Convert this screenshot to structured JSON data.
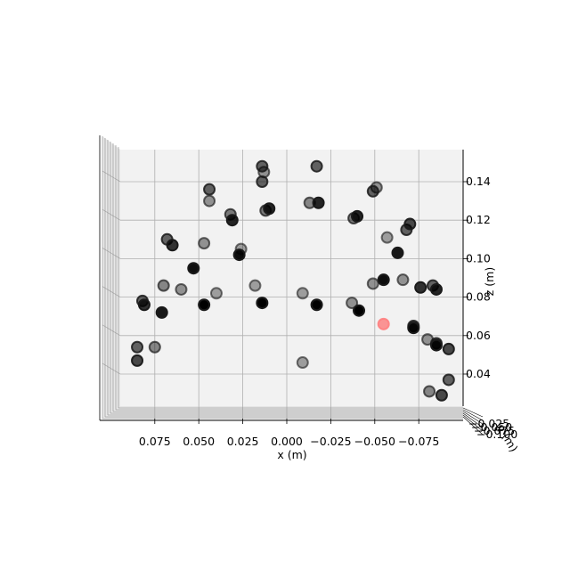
{
  "chart_data": {
    "type": "scatter",
    "projection": "3d",
    "view": "front (x-z plane), x axis inverted",
    "xlabel": "x (m)",
    "ylabel": "y (m)",
    "zlabel": "z (m)",
    "grid": true,
    "x_ticks": [
      "0.075",
      "0.050",
      "0.025",
      "0.000",
      "−0.025",
      "−0.050",
      "−0.075"
    ],
    "z_ticks": [
      "0.04",
      "0.06",
      "0.08",
      "0.10",
      "0.12",
      "0.14"
    ],
    "y_tick_residue": "−0.100",
    "xlim": [
      0.095,
      -0.1
    ],
    "zlim": [
      0.025,
      0.155
    ],
    "marker_color": "#000000",
    "highlight_color": "#ff5555",
    "points": [
      {
        "x": 0.014,
        "z": 0.148,
        "depth": 0.6
      },
      {
        "x": 0.013,
        "z": 0.145,
        "depth": 0.4
      },
      {
        "x": 0.044,
        "z": 0.136,
        "depth": 0.6
      },
      {
        "x": 0.044,
        "z": 0.13,
        "depth": 0.4
      },
      {
        "x": 0.014,
        "z": 0.14,
        "depth": 0.6
      },
      {
        "x": -0.017,
        "z": 0.148,
        "depth": 0.6
      },
      {
        "x": -0.049,
        "z": 0.135,
        "depth": 0.6
      },
      {
        "x": -0.051,
        "z": 0.137,
        "depth": 0.4
      },
      {
        "x": 0.032,
        "z": 0.123,
        "depth": 0.5
      },
      {
        "x": 0.031,
        "z": 0.12,
        "depth": 0.85
      },
      {
        "x": 0.012,
        "z": 0.125,
        "depth": 0.5
      },
      {
        "x": 0.01,
        "z": 0.126,
        "depth": 0.85
      },
      {
        "x": -0.013,
        "z": 0.129,
        "depth": 0.45
      },
      {
        "x": -0.018,
        "z": 0.129,
        "depth": 0.85
      },
      {
        "x": -0.038,
        "z": 0.121,
        "depth": 0.5
      },
      {
        "x": -0.04,
        "z": 0.122,
        "depth": 0.85
      },
      {
        "x": 0.068,
        "z": 0.11,
        "depth": 0.6
      },
      {
        "x": 0.065,
        "z": 0.107,
        "depth": 0.8
      },
      {
        "x": 0.047,
        "z": 0.108,
        "depth": 0.4
      },
      {
        "x": 0.026,
        "z": 0.105,
        "depth": 0.35
      },
      {
        "x": 0.027,
        "z": 0.102,
        "depth": 0.95
      },
      {
        "x": -0.057,
        "z": 0.111,
        "depth": 0.35
      },
      {
        "x": -0.068,
        "z": 0.115,
        "depth": 0.6
      },
      {
        "x": -0.07,
        "z": 0.118,
        "depth": 0.7
      },
      {
        "x": -0.063,
        "z": 0.103,
        "depth": 0.9
      },
      {
        "x": 0.053,
        "z": 0.095,
        "depth": 0.95
      },
      {
        "x": 0.07,
        "z": 0.086,
        "depth": 0.45
      },
      {
        "x": 0.06,
        "z": 0.084,
        "depth": 0.4
      },
      {
        "x": 0.04,
        "z": 0.082,
        "depth": 0.35
      },
      {
        "x": 0.018,
        "z": 0.086,
        "depth": 0.35
      },
      {
        "x": -0.009,
        "z": 0.082,
        "depth": 0.35
      },
      {
        "x": -0.049,
        "z": 0.087,
        "depth": 0.4
      },
      {
        "x": -0.055,
        "z": 0.089,
        "depth": 0.95
      },
      {
        "x": -0.066,
        "z": 0.089,
        "depth": 0.4
      },
      {
        "x": -0.076,
        "z": 0.085,
        "depth": 0.8
      },
      {
        "x": -0.083,
        "z": 0.086,
        "depth": 0.6
      },
      {
        "x": -0.085,
        "z": 0.084,
        "depth": 0.85
      },
      {
        "x": 0.082,
        "z": 0.078,
        "depth": 0.6
      },
      {
        "x": 0.081,
        "z": 0.076,
        "depth": 0.8
      },
      {
        "x": 0.071,
        "z": 0.072,
        "depth": 0.9
      },
      {
        "x": 0.047,
        "z": 0.076,
        "depth": 1.0
      },
      {
        "x": 0.014,
        "z": 0.077,
        "depth": 1.0
      },
      {
        "x": -0.017,
        "z": 0.076,
        "depth": 1.0
      },
      {
        "x": -0.037,
        "z": 0.077,
        "depth": 0.4
      },
      {
        "x": -0.041,
        "z": 0.073,
        "depth": 1.0
      },
      {
        "x": -0.055,
        "z": 0.066,
        "depth": 0.45,
        "highlight": true
      },
      {
        "x": -0.072,
        "z": 0.065,
        "depth": 0.6
      },
      {
        "x": -0.072,
        "z": 0.064,
        "depth": 0.95
      },
      {
        "x": -0.08,
        "z": 0.058,
        "depth": 0.4
      },
      {
        "x": -0.085,
        "z": 0.056,
        "depth": 0.6
      },
      {
        "x": -0.085,
        "z": 0.055,
        "depth": 0.95
      },
      {
        "x": -0.092,
        "z": 0.053,
        "depth": 0.7
      },
      {
        "x": 0.085,
        "z": 0.054,
        "depth": 0.6
      },
      {
        "x": 0.085,
        "z": 0.047,
        "depth": 0.7
      },
      {
        "x": 0.075,
        "z": 0.054,
        "depth": 0.45
      },
      {
        "x": -0.009,
        "z": 0.046,
        "depth": 0.35
      },
      {
        "x": -0.081,
        "z": 0.031,
        "depth": 0.45
      },
      {
        "x": -0.088,
        "z": 0.029,
        "depth": 0.7
      },
      {
        "x": -0.092,
        "z": 0.037,
        "depth": 0.6
      }
    ]
  }
}
